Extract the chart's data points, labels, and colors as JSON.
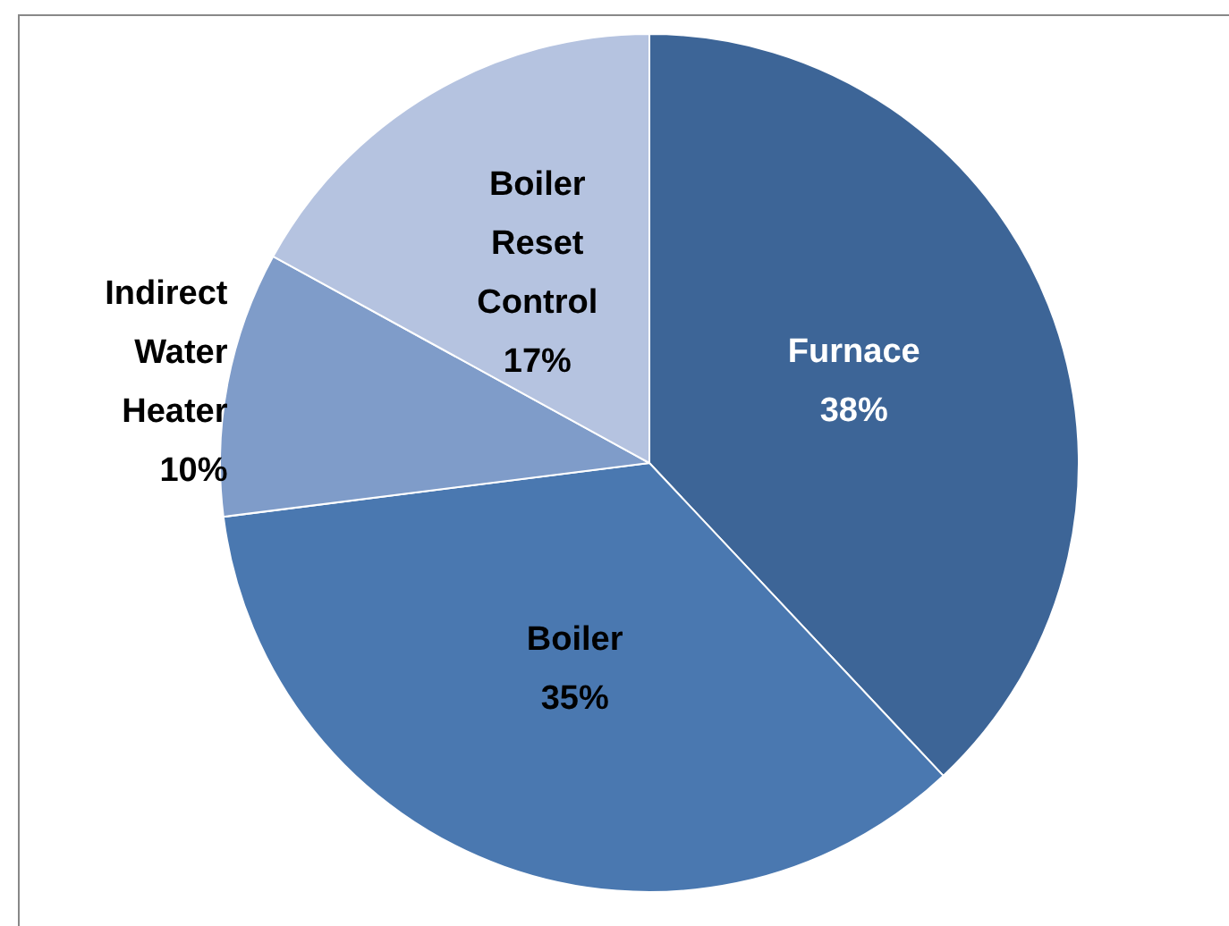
{
  "chart_data": {
    "type": "pie",
    "categories": [
      "Furnace",
      "Boiler",
      "Indirect\nWater\nHeater",
      "Boiler\nReset\nControl"
    ],
    "values": [
      38,
      35,
      10,
      17
    ],
    "value_labels": [
      "38%",
      "35%",
      "10%",
      "17%"
    ],
    "colors": [
      "#3d6597",
      "#4a78b0",
      "#7f9cc9",
      "#b5c3e0"
    ],
    "legend": false
  }
}
